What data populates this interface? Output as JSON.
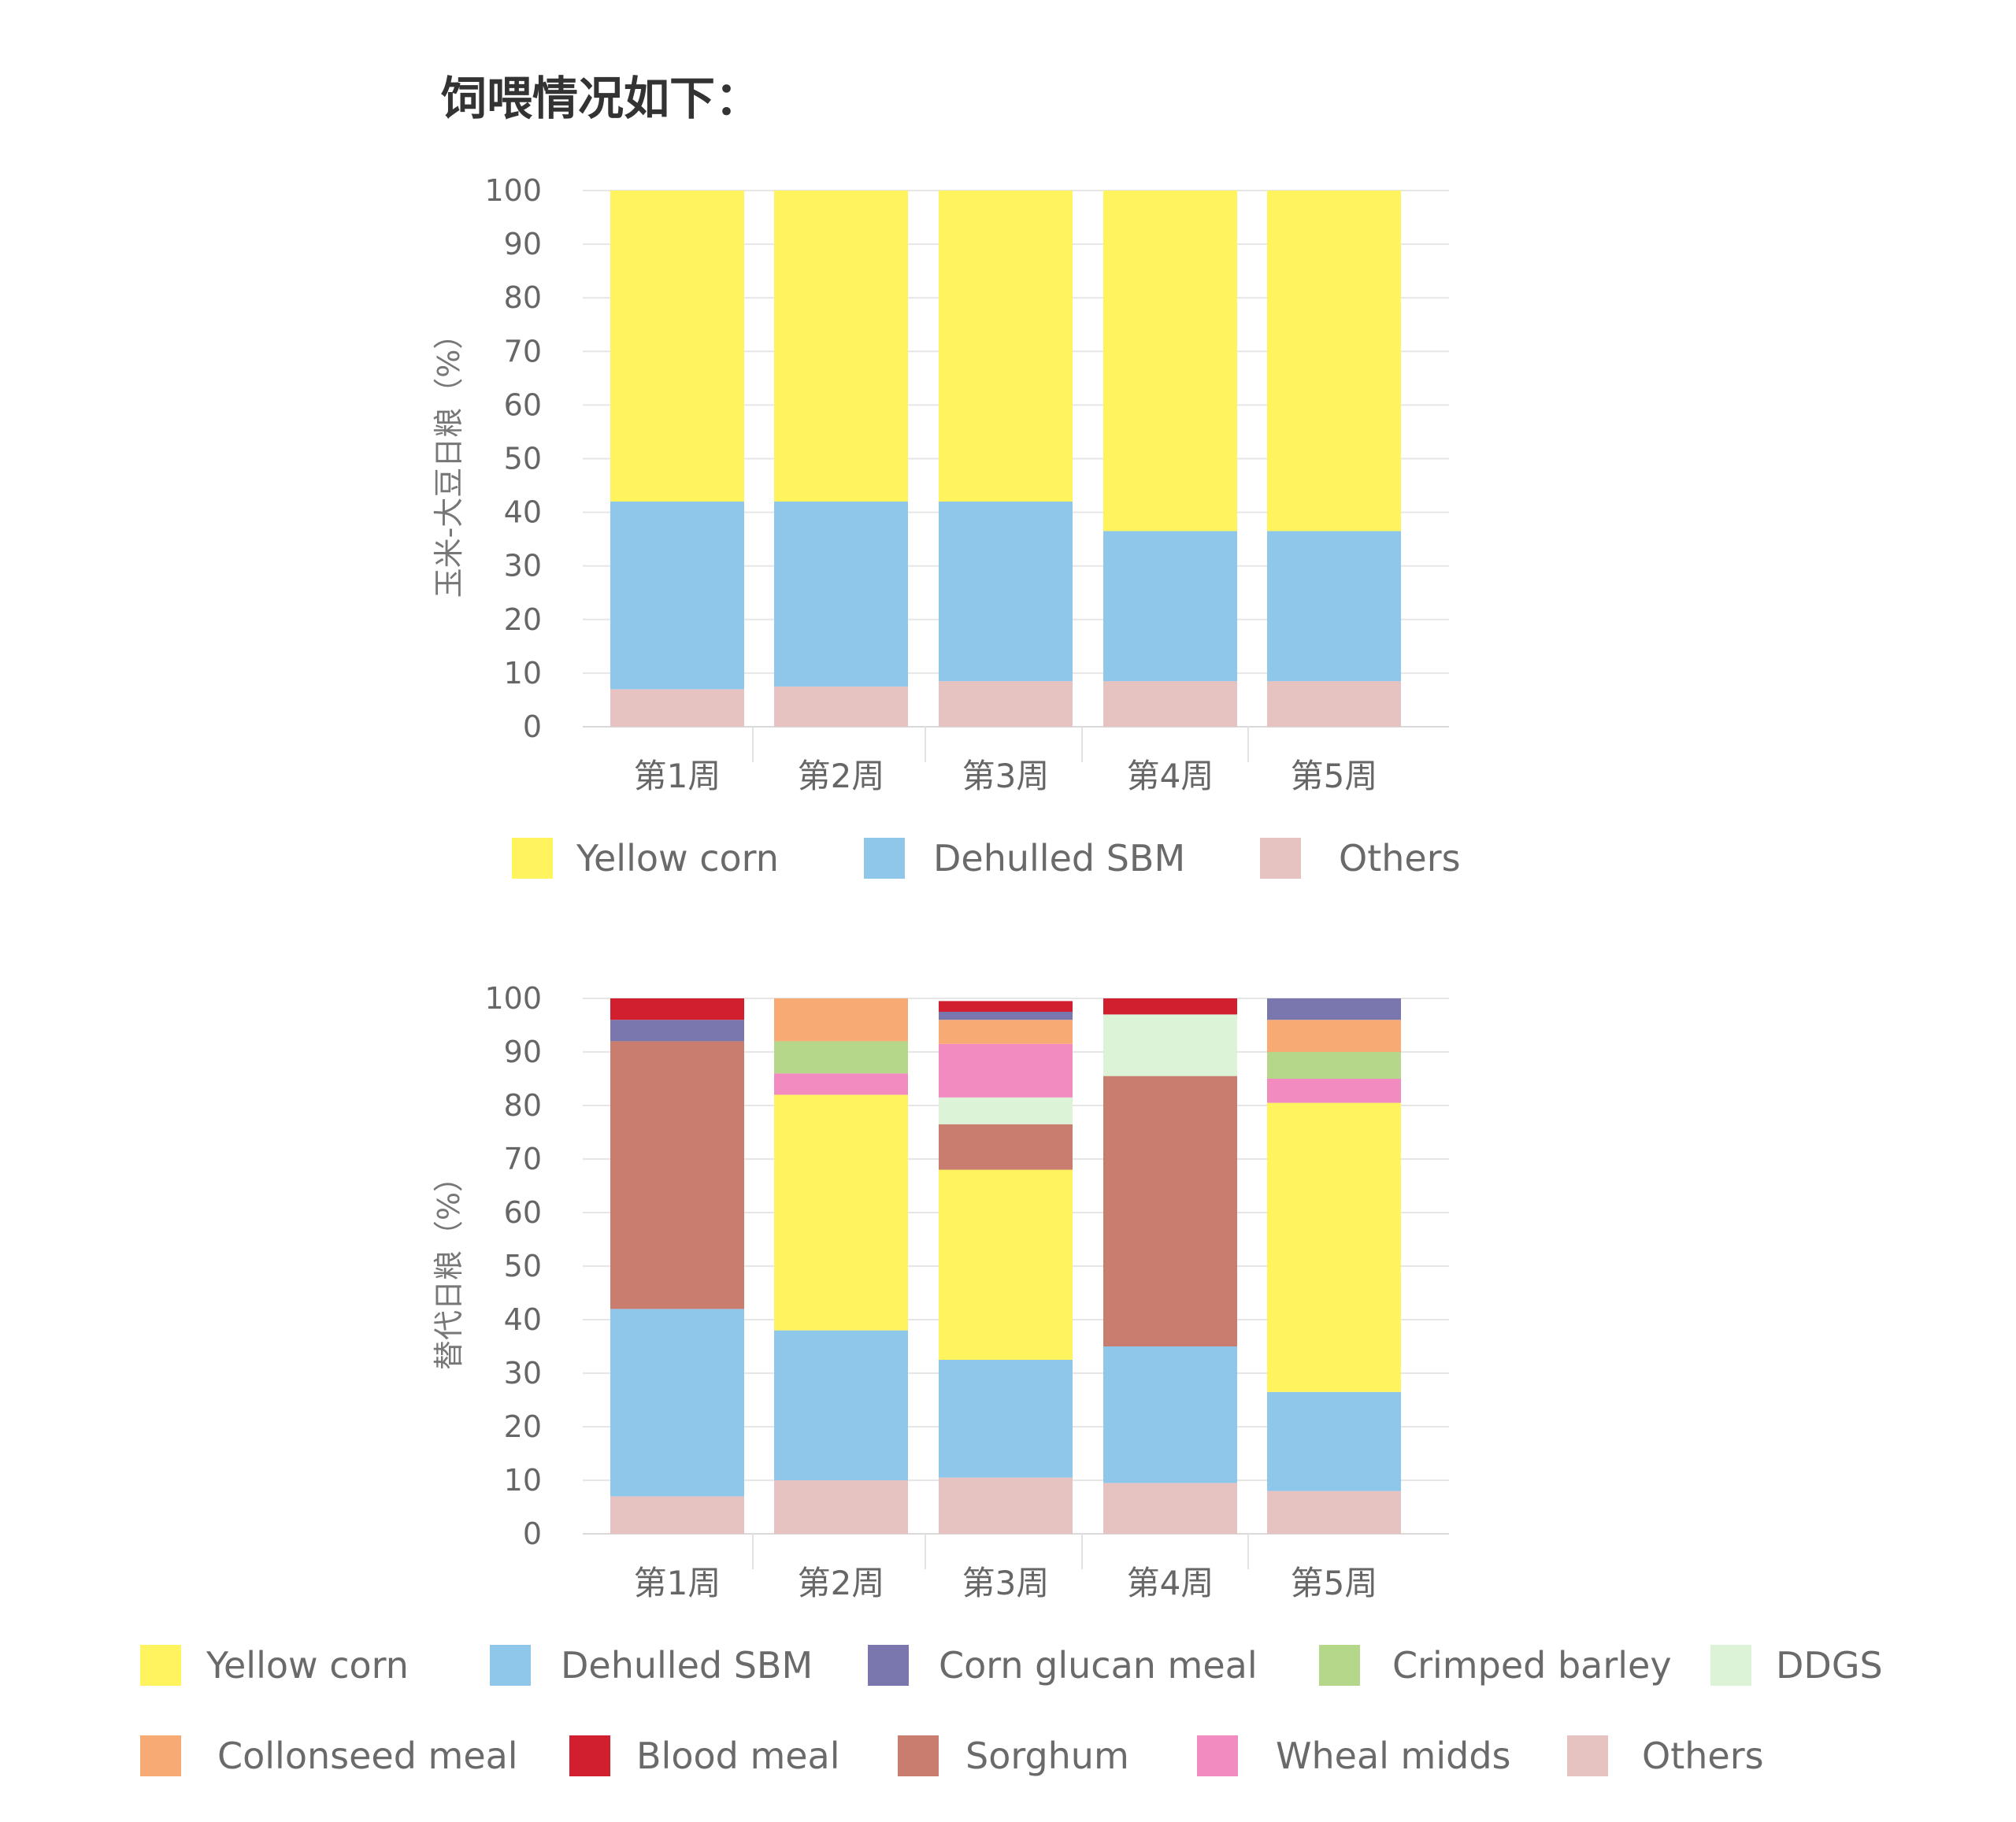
{
  "title": "饲喂情况如下：",
  "colors": {
    "Yellow corn": "#FFF35E",
    "Dehulled SBM": "#8FC7EA",
    "Others": "#E6C2C1",
    "Corn glucan meal": "#7A76AE",
    "Crimped barley": "#B5D78A",
    "DDGS": "#DDF3D8",
    "Collonseed meal": "#F8AA74",
    "Blood meal": "#D21F30",
    "Sorghum": "#C97D6E",
    "Wheal midds": "#F28BC0"
  },
  "chart_data": [
    {
      "type": "bar",
      "stacked": true,
      "ylabel": "玉米-大豆日粮（%）",
      "ylim": [
        0,
        100
      ],
      "yticks": [
        0,
        10,
        20,
        30,
        40,
        50,
        60,
        70,
        80,
        90,
        100
      ],
      "grid": true,
      "legend_position": "bottom",
      "categories": [
        "第1周",
        "第2周",
        "第3周",
        "第4周",
        "第5周"
      ],
      "series": [
        {
          "name": "Others",
          "values": [
            7,
            7.5,
            8.5,
            8.5,
            8.5
          ]
        },
        {
          "name": "Dehulled SBM",
          "values": [
            35,
            34.5,
            33.5,
            28,
            28
          ]
        },
        {
          "name": "Yellow corn",
          "values": [
            58,
            58,
            58,
            63.5,
            63.5
          ]
        }
      ],
      "legend": [
        "Yellow corn",
        "Dehulled SBM",
        "Others"
      ]
    },
    {
      "type": "bar",
      "stacked": true,
      "ylabel": "替代日粮（%）",
      "ylim": [
        0,
        100
      ],
      "yticks": [
        0,
        10,
        20,
        30,
        40,
        50,
        60,
        70,
        80,
        90,
        100
      ],
      "grid": true,
      "legend_position": "bottom",
      "categories": [
        "第1周",
        "第2周",
        "第3周",
        "第4周",
        "第5周"
      ],
      "series": [
        {
          "name": "Others",
          "values": [
            7,
            10,
            10.5,
            9.5,
            8
          ]
        },
        {
          "name": "Dehulled SBM",
          "values": [
            35,
            28,
            22,
            25.5,
            18.5
          ]
        },
        {
          "name": "Yellow corn",
          "values": [
            0,
            44,
            35.5,
            0,
            54
          ]
        },
        {
          "name": "Sorghum",
          "values": [
            50,
            0,
            8.5,
            50.5,
            0
          ]
        },
        {
          "name": "DDGS",
          "values": [
            0,
            0,
            5,
            11.5,
            0
          ]
        },
        {
          "name": "Wheal midds",
          "values": [
            0,
            4,
            10,
            0,
            4.5
          ]
        },
        {
          "name": "Crimped barley",
          "values": [
            0,
            6,
            0,
            0,
            5
          ]
        },
        {
          "name": "Collonseed meal",
          "values": [
            0,
            8,
            4.5,
            0,
            6
          ]
        },
        {
          "name": "Corn glucan meal",
          "values": [
            4,
            0,
            1.5,
            0,
            4
          ]
        },
        {
          "name": "Blood meal",
          "values": [
            4,
            0,
            2,
            3,
            0
          ]
        }
      ],
      "legend": [
        [
          "Yellow corn",
          "Dehulled SBM",
          "Corn glucan meal",
          "Crimped barley",
          "DDGS"
        ],
        [
          "Collonseed meal",
          "Blood meal",
          "Sorghum",
          "Wheal midds",
          "Others"
        ]
      ]
    }
  ]
}
